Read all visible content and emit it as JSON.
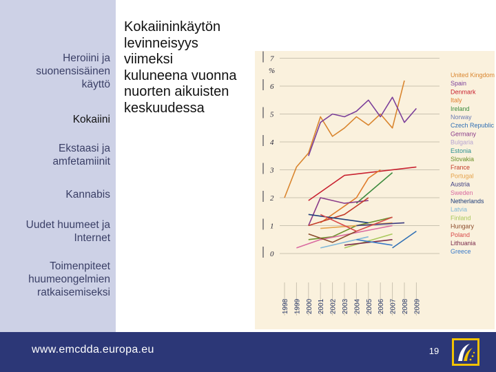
{
  "sidebar": {
    "items": [
      {
        "label": "Heroiini ja suonensisäinen käyttö",
        "lines": [
          "Heroiini ja",
          "suonensisäinen",
          "käyttö"
        ],
        "active": false
      },
      {
        "label": "Kokaiini",
        "lines": [
          "Kokaiini"
        ],
        "active": true
      },
      {
        "label": "Ekstaasi ja amfetamiinit",
        "lines": [
          "Ekstaasi ja",
          "amfetamiinit"
        ],
        "active": false
      },
      {
        "label": "Kannabis",
        "lines": [
          "Kannabis"
        ],
        "active": false
      },
      {
        "label": "Uudet huumeet ja Internet",
        "lines": [
          "Uudet huumeet ja",
          "Internet"
        ],
        "active": false
      },
      {
        "label": "Toimenpiteet huumeongelmien ratkaisemiseksi",
        "lines": [
          "Toimenpiteet",
          "huumeongelmien",
          "ratkaisemiseksi"
        ],
        "active": false
      }
    ]
  },
  "slide": {
    "title": "Kokaiininkäytön levinneisyys viimeksi kuluneena vuonna nuorten aikuisten keskuudessa",
    "title_lines": [
      "Kokaiininkäytön",
      "levinneisyys",
      "viimeksi",
      "kuluneena vuonna",
      "nuorten aikuisten",
      "keskuudessa"
    ]
  },
  "footer": {
    "url": "www.emcdda.europa.eu",
    "page_number": "19"
  },
  "colors": {
    "sidebar_bg": "#cdd1e6",
    "footer_bg": "#2c3777",
    "chart_bg": "#faf1dd",
    "logo_yellow": "#f2c200"
  },
  "chart_data": {
    "type": "line",
    "ylabel": "%",
    "ylim": [
      0,
      7
    ],
    "yticks": [
      "0",
      "1",
      "2",
      "3",
      "4",
      "5",
      "6",
      "7"
    ],
    "x": [
      "1998",
      "1999",
      "2000",
      "2001",
      "2002",
      "2003",
      "2004",
      "2005",
      "2006",
      "2007",
      "2008",
      "2009"
    ],
    "legend_position": "right",
    "series": [
      {
        "name": "United Kingdom",
        "color": "#d9852e",
        "values": [
          2.0,
          3.1,
          3.6,
          4.9,
          4.2,
          4.5,
          4.9,
          4.6,
          5.0,
          4.5,
          6.2,
          null
        ]
      },
      {
        "name": "Spain",
        "color": "#7b3f9a",
        "values": [
          null,
          null,
          3.5,
          4.7,
          5.0,
          4.9,
          5.1,
          5.5,
          4.9,
          5.6,
          4.7,
          5.2
        ]
      },
      {
        "name": "Denmark",
        "color": "#c8202f",
        "values": [
          null,
          null,
          1.9,
          null,
          null,
          2.8,
          null,
          null,
          null,
          null,
          null,
          3.1
        ]
      },
      {
        "name": "Italy",
        "color": "#e07b2a",
        "values": [
          null,
          null,
          null,
          1.1,
          null,
          1.7,
          2.0,
          2.7,
          3.0,
          null,
          null,
          null
        ]
      },
      {
        "name": "Ireland",
        "color": "#3c8a3c",
        "values": [
          null,
          null,
          null,
          null,
          null,
          null,
          1.8,
          null,
          null,
          2.9,
          null,
          null
        ]
      },
      {
        "name": "Norway",
        "color": "#6a7bb3",
        "values": [
          null,
          null,
          null,
          null,
          null,
          null,
          null,
          null,
          null,
          null,
          null,
          1.0
        ]
      },
      {
        "name": "Czech Republic",
        "color": "#2f6fb4",
        "values": [
          null,
          null,
          null,
          null,
          null,
          null,
          null,
          null,
          null,
          0.2,
          null,
          0.8
        ]
      },
      {
        "name": "Germany",
        "color": "#8a3c8a",
        "values": [
          null,
          null,
          1.0,
          2.0,
          null,
          1.8,
          null,
          1.9,
          null,
          null,
          null,
          null
        ]
      },
      {
        "name": "Bulgaria",
        "color": "#b7a4d1",
        "values": [
          null,
          null,
          null,
          null,
          null,
          null,
          null,
          null,
          null,
          null,
          null,
          null
        ]
      },
      {
        "name": "Estonia",
        "color": "#2a8f8f",
        "values": [
          null,
          null,
          null,
          null,
          null,
          null,
          null,
          null,
          null,
          null,
          null,
          null
        ]
      },
      {
        "name": "Slovakia",
        "color": "#6b8f2a",
        "values": [
          null,
          null,
          0.5,
          null,
          0.6,
          null,
          1.0,
          null,
          null,
          1.3,
          null,
          null
        ]
      },
      {
        "name": "France",
        "color": "#c43c2a",
        "values": [
          null,
          null,
          1.0,
          null,
          null,
          1.4,
          null,
          2.0,
          null,
          null,
          null,
          null
        ]
      },
      {
        "name": "Portugal",
        "color": "#e5a24a",
        "values": [
          null,
          null,
          null,
          0.9,
          null,
          null,
          null,
          null,
          null,
          1.1,
          null,
          null
        ]
      },
      {
        "name": "Austria",
        "color": "#3a3a80",
        "values": [
          null,
          null,
          null,
          null,
          null,
          null,
          1.0,
          null,
          null,
          null,
          1.1,
          null
        ]
      },
      {
        "name": "Sweden",
        "color": "#d96aa0",
        "values": [
          null,
          0.2,
          null,
          0.5,
          null,
          null,
          null,
          null,
          null,
          1.0,
          null,
          null
        ]
      },
      {
        "name": "Netherlands",
        "color": "#1f3d7a",
        "values": [
          null,
          null,
          1.4,
          null,
          null,
          null,
          null,
          1.1,
          null,
          null,
          null,
          null
        ]
      },
      {
        "name": "Latvia",
        "color": "#7fb8d9",
        "values": [
          null,
          null,
          null,
          0.2,
          null,
          null,
          null,
          0.6,
          null,
          null,
          null,
          null
        ]
      },
      {
        "name": "Finland",
        "color": "#a8c85a",
        "values": [
          null,
          null,
          null,
          null,
          null,
          0.2,
          null,
          null,
          null,
          0.7,
          null,
          null
        ]
      },
      {
        "name": "Hungary",
        "color": "#8a4a2a",
        "values": [
          null,
          null,
          0.7,
          null,
          0.4,
          null,
          0.8,
          null,
          null,
          null,
          null,
          null
        ]
      },
      {
        "name": "Poland",
        "color": "#d94a4a",
        "values": [
          null,
          null,
          null,
          1.4,
          null,
          null,
          0.8,
          null,
          null,
          1.3,
          null,
          null
        ]
      },
      {
        "name": "Lithuania",
        "color": "#7a2a4a",
        "values": [
          null,
          null,
          null,
          null,
          null,
          0.3,
          null,
          null,
          null,
          0.5,
          null,
          null
        ]
      },
      {
        "name": "Greece",
        "color": "#3a7ac8",
        "values": [
          null,
          null,
          null,
          null,
          null,
          null,
          0.5,
          null,
          null,
          0.3,
          null,
          null
        ]
      }
    ]
  }
}
